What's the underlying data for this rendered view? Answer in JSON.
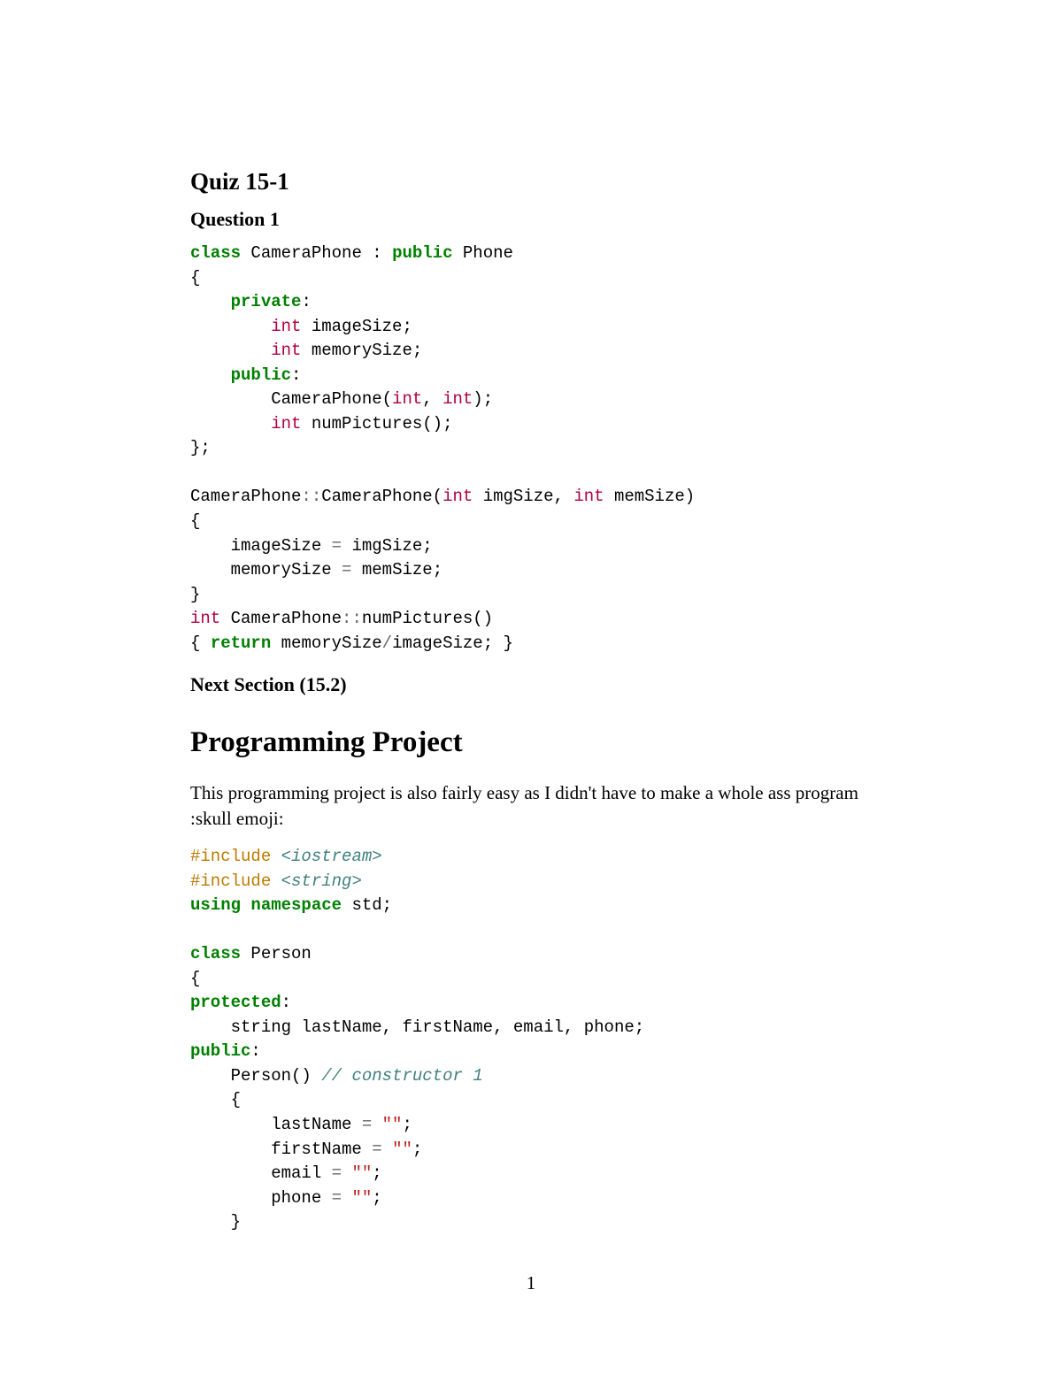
{
  "headings": {
    "quiz": "Quiz 15-1",
    "question": "Question 1",
    "next": "Next Section (15.2)",
    "section": "Programming Project"
  },
  "body": {
    "intro": "This programming project is also fairly easy as I didn't have to make a whole ass program :skull emoji:"
  },
  "code1": {
    "tokens": {
      "class": "class",
      "public": "public",
      "private": "private",
      "int": "int",
      "return": "return"
    },
    "identifiers": {
      "CameraPhone": "CameraPhone",
      "Phone": "Phone",
      "imageSize": "imageSize",
      "memorySize": "memorySize",
      "numPictures": "numPictures",
      "imgSize": "imgSize",
      "memSize": "memSize"
    }
  },
  "code2": {
    "tokens": {
      "include": "#include",
      "using": "using",
      "namespace": "namespace",
      "class": "class",
      "protected": "protected",
      "public": "public"
    },
    "headers": {
      "iostream": "<iostream>",
      "string": "<string>"
    },
    "identifiers": {
      "std": "std",
      "Person": "Person",
      "string_t": "string",
      "lastName": "lastName",
      "firstName": "firstName",
      "email": "email",
      "phone": "phone"
    },
    "comments": {
      "ctor1": "// constructor 1"
    },
    "strings": {
      "empty": "\"\""
    }
  },
  "colors": {
    "keyword": "#008000",
    "type": "#b00040",
    "preprocessor": "#bc7a00",
    "header_include": "#408080",
    "comment": "#408080",
    "string": "#ba2121",
    "punct": "#666666",
    "text": "#000000",
    "background": "#ffffff"
  },
  "typography": {
    "body_font": "Times New Roman",
    "code_font": "Courier New",
    "h_quiz_pt": 27,
    "h_question_pt": 22,
    "h_section_pt": 33,
    "body_pt": 21,
    "code_pt": 19
  },
  "page_number": "1"
}
